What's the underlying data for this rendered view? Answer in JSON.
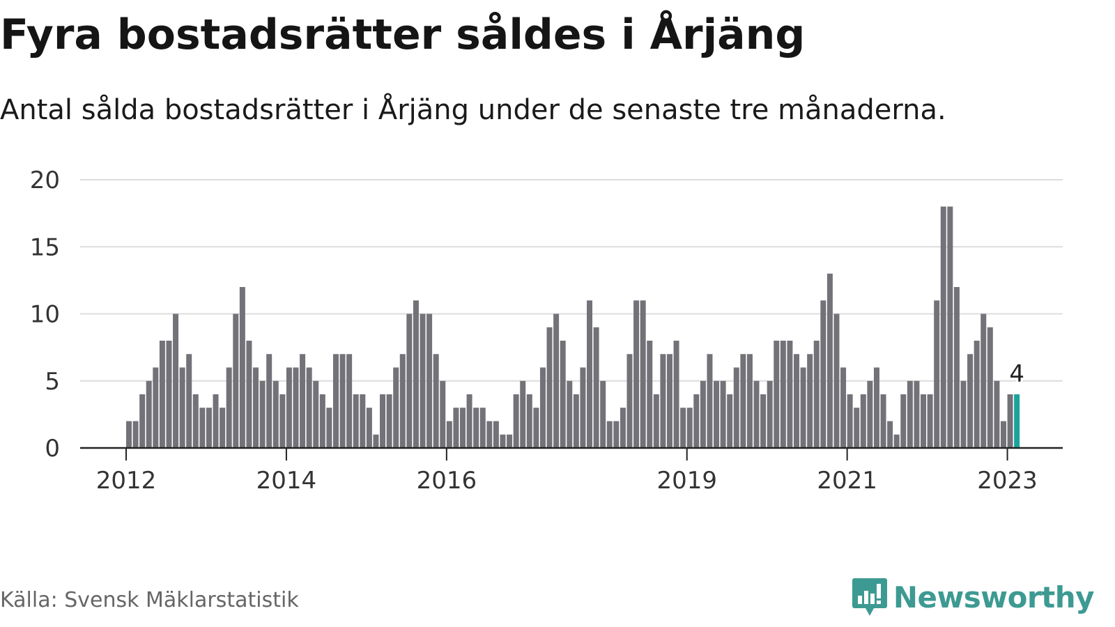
{
  "title": "Fyra bostadsrätter såldes i Årjäng",
  "subtitle": "Antal sålda bostadsrätter i Årjäng under de senaste tre månaderna.",
  "source": "Källa: Svensk Mäklarstatistik",
  "brand": {
    "name": "Newsworthy",
    "logo_icon": "bar-chart-speech-bubble-icon",
    "color": "#3d9a92"
  },
  "colors": {
    "bar": "#737278",
    "highlight": "#1aa39a",
    "grid": "#dcdcdc",
    "axis": "#222222"
  },
  "chart_data": {
    "type": "bar",
    "title": "Fyra bostadsrätter såldes i Årjäng",
    "subtitle": "Antal sålda bostadsrätter i Årjäng under de senaste tre månaderna.",
    "xlabel": "",
    "ylabel": "",
    "ylim": [
      0,
      20
    ],
    "yticks": [
      0,
      5,
      10,
      15,
      20
    ],
    "grid": true,
    "frequency": "monthly, rolling three-month total",
    "x_start": "2012-01",
    "xticks": [
      "2012",
      "2014",
      "2016",
      "2019",
      "2021",
      "2023"
    ],
    "xtick_months": [
      "2012-01",
      "2014-01",
      "2016-01",
      "2019-01",
      "2021-01",
      "2023-01"
    ],
    "values": [
      2,
      2,
      4,
      5,
      6,
      8,
      8,
      10,
      6,
      7,
      4,
      3,
      3,
      4,
      3,
      6,
      10,
      12,
      8,
      6,
      5,
      7,
      5,
      4,
      6,
      6,
      7,
      6,
      5,
      4,
      3,
      7,
      7,
      7,
      4,
      4,
      3,
      1,
      4,
      4,
      6,
      7,
      10,
      11,
      10,
      10,
      7,
      5,
      2,
      3,
      3,
      4,
      3,
      3,
      2,
      2,
      1,
      1,
      4,
      5,
      4,
      3,
      6,
      9,
      10,
      8,
      5,
      4,
      6,
      11,
      9,
      5,
      2,
      2,
      3,
      7,
      11,
      11,
      8,
      4,
      7,
      7,
      8,
      3,
      3,
      4,
      5,
      7,
      5,
      5,
      4,
      6,
      7,
      7,
      5,
      4,
      5,
      8,
      8,
      8,
      7,
      6,
      7,
      8,
      11,
      13,
      10,
      6,
      4,
      3,
      4,
      5,
      6,
      4,
      2,
      1,
      4,
      5,
      5,
      4,
      4,
      11,
      18,
      18,
      12,
      5,
      7,
      8,
      10,
      9,
      5,
      2,
      4,
      4
    ],
    "highlight": {
      "index": 133,
      "label": "4"
    }
  }
}
